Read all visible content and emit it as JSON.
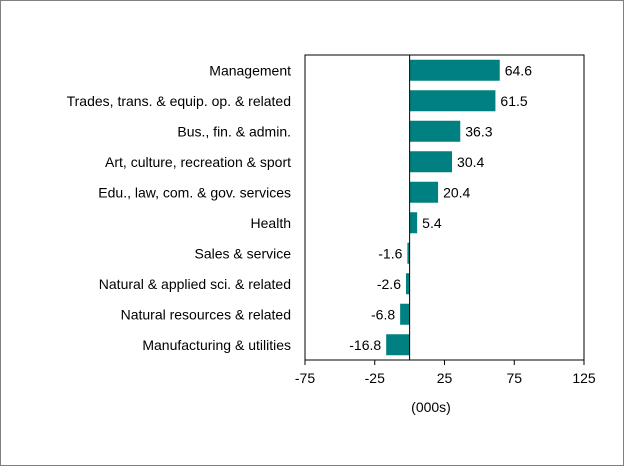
{
  "chart_data": {
    "type": "bar",
    "orientation": "horizontal",
    "categories": [
      "Management",
      "Trades, trans. & equip. op. & related",
      "Bus., fin. & admin.",
      "Art, culture, recreation & sport",
      "Edu., law, com. & gov. services",
      "Health",
      "Sales & service",
      "Natural & applied sci. & related",
      "Natural resources & related",
      "Manufacturing & utilities"
    ],
    "values": [
      64.6,
      61.5,
      36.3,
      30.4,
      20.4,
      5.4,
      -1.6,
      -2.6,
      -6.8,
      -16.8
    ],
    "value_labels": [
      "64.6",
      "61.5",
      "36.3",
      "30.4",
      "20.4",
      "5.4",
      "-1.6",
      "-2.6",
      "-6.8",
      "-16.8"
    ],
    "xlabel": "(000s)",
    "xlim": [
      -75,
      125
    ],
    "xticks": [
      -75,
      -25,
      25,
      75,
      125
    ],
    "xtick_labels": [
      "-75",
      "-25",
      "25",
      "75",
      "125"
    ],
    "grid": false,
    "bar_color": "#008080"
  }
}
